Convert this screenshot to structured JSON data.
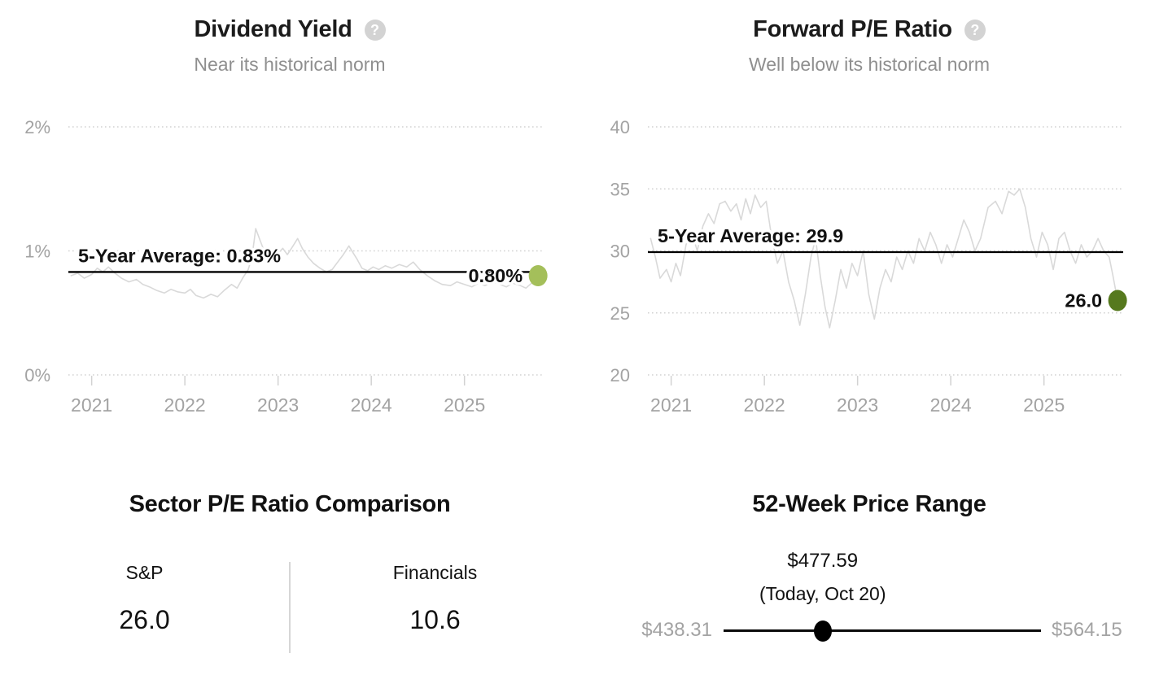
{
  "colors": {
    "background": "#ffffff",
    "title_text": "#1b1b1b",
    "subtitle_text": "#8f8f8f",
    "axis_text": "#a3a3a3",
    "gridline": "#d2d2d2",
    "series_line": "#d9d9d9",
    "average_line": "#000000",
    "dividend_dot": "#a4bf5a",
    "pe_dot": "#56791e",
    "slider": "#000000"
  },
  "charts": [
    {
      "title": "Dividend Yield",
      "help_glyph": "?",
      "subtitle": "Near its historical norm",
      "chart_data": {
        "type": "line",
        "title": "Dividend Yield",
        "xlim": [
          2020.75,
          2025.85
        ],
        "ylim": [
          0,
          2
        ],
        "x_ticks": [
          2021,
          2022,
          2023,
          2024,
          2025
        ],
        "x_tick_labels": [
          "2021",
          "2022",
          "2023",
          "2024",
          "2025"
        ],
        "y_ticks": [
          0,
          1,
          2
        ],
        "y_tick_labels": [
          "0%",
          "1%",
          "2%"
        ],
        "grid": "horizontal-dotted",
        "legend": "none",
        "average": {
          "value": 0.83,
          "label": "5-Year Average: 0.83%"
        },
        "current": {
          "value": 0.8,
          "label": "0.80%",
          "dot_color": "#a4bf5a"
        },
        "series": [
          {
            "name": "Dividend Yield",
            "color": "#d9d9d9",
            "x": [
              2020.78,
              2020.85,
              2020.92,
              2021.0,
              2021.06,
              2021.12,
              2021.18,
              2021.25,
              2021.32,
              2021.4,
              2021.48,
              2021.55,
              2021.62,
              2021.7,
              2021.78,
              2021.85,
              2021.92,
              2022.0,
              2022.06,
              2022.12,
              2022.2,
              2022.28,
              2022.35,
              2022.42,
              2022.5,
              2022.56,
              2022.62,
              2022.68,
              2022.72,
              2022.76,
              2022.8,
              2022.84,
              2022.9,
              2022.95,
              2023.0,
              2023.05,
              2023.1,
              2023.16,
              2023.21,
              2023.26,
              2023.32,
              2023.38,
              2023.45,
              2023.52,
              2023.58,
              2023.65,
              2023.7,
              2023.76,
              2023.8,
              2023.85,
              2023.9,
              2023.96,
              2024.02,
              2024.08,
              2024.15,
              2024.22,
              2024.3,
              2024.38,
              2024.45,
              2024.52,
              2024.6,
              2024.68,
              2024.76,
              2024.85,
              2024.92,
              2025.0,
              2025.08,
              2025.15,
              2025.22,
              2025.3,
              2025.38,
              2025.45,
              2025.52,
              2025.6,
              2025.66,
              2025.72,
              2025.79
            ],
            "y": [
              0.8,
              0.82,
              0.78,
              0.81,
              0.86,
              0.83,
              0.87,
              0.82,
              0.78,
              0.75,
              0.77,
              0.73,
              0.71,
              0.68,
              0.66,
              0.69,
              0.67,
              0.66,
              0.69,
              0.64,
              0.62,
              0.65,
              0.63,
              0.68,
              0.73,
              0.7,
              0.78,
              0.85,
              0.95,
              1.18,
              1.1,
              1.02,
              0.98,
              0.94,
              0.98,
              1.02,
              0.97,
              1.04,
              1.1,
              1.02,
              0.95,
              0.9,
              0.86,
              0.83,
              0.85,
              0.92,
              0.97,
              1.04,
              0.99,
              0.93,
              0.86,
              0.84,
              0.87,
              0.85,
              0.88,
              0.86,
              0.89,
              0.87,
              0.91,
              0.85,
              0.8,
              0.76,
              0.73,
              0.72,
              0.75,
              0.73,
              0.71,
              0.74,
              0.72,
              0.75,
              0.73,
              0.71,
              0.74,
              0.72,
              0.7,
              0.74,
              0.8
            ]
          }
        ]
      }
    },
    {
      "title": "Forward P/E Ratio",
      "help_glyph": "?",
      "subtitle": "Well below its historical norm",
      "chart_data": {
        "type": "line",
        "title": "Forward P/E Ratio",
        "xlim": [
          2020.75,
          2025.85
        ],
        "ylim": [
          20,
          40
        ],
        "x_ticks": [
          2021,
          2022,
          2023,
          2024,
          2025
        ],
        "x_tick_labels": [
          "2021",
          "2022",
          "2023",
          "2024",
          "2025"
        ],
        "y_ticks": [
          20,
          25,
          30,
          35,
          40
        ],
        "y_tick_labels": [
          "20",
          "25",
          "30",
          "35",
          "40"
        ],
        "grid": "horizontal-dotted",
        "legend": "none",
        "average": {
          "value": 29.9,
          "label": "5-Year Average: 29.9"
        },
        "current": {
          "value": 26.0,
          "label": "26.0",
          "dot_color": "#56791e"
        },
        "series": [
          {
            "name": "Forward P/E Ratio",
            "color": "#d9d9d9",
            "x": [
              2020.78,
              2020.83,
              2020.88,
              2020.95,
              2021.0,
              2021.05,
              2021.1,
              2021.16,
              2021.22,
              2021.28,
              2021.34,
              2021.4,
              2021.46,
              2021.52,
              2021.58,
              2021.64,
              2021.7,
              2021.75,
              2021.8,
              2021.85,
              2021.9,
              2021.96,
              2022.02,
              2022.08,
              2022.14,
              2022.2,
              2022.26,
              2022.32,
              2022.38,
              2022.44,
              2022.5,
              2022.55,
              2022.6,
              2022.65,
              2022.7,
              2022.76,
              2022.82,
              2022.88,
              2022.94,
              2023.0,
              2023.06,
              2023.12,
              2023.18,
              2023.24,
              2023.3,
              2023.36,
              2023.42,
              2023.48,
              2023.54,
              2023.6,
              2023.66,
              2023.72,
              2023.78,
              2023.84,
              2023.9,
              2023.96,
              2024.02,
              2024.08,
              2024.14,
              2024.2,
              2024.26,
              2024.32,
              2024.4,
              2024.48,
              2024.55,
              2024.62,
              2024.68,
              2024.74,
              2024.8,
              2024.86,
              2024.92,
              2024.98,
              2025.04,
              2025.1,
              2025.16,
              2025.22,
              2025.28,
              2025.34,
              2025.4,
              2025.46,
              2025.52,
              2025.58,
              2025.64,
              2025.7,
              2025.74,
              2025.79
            ],
            "y": [
              31.0,
              29.5,
              27.8,
              28.5,
              27.5,
              29.0,
              28.0,
              30.5,
              31.5,
              30.0,
              32.0,
              33.0,
              32.2,
              33.8,
              34.0,
              33.2,
              33.8,
              32.5,
              34.2,
              33.0,
              34.5,
              33.5,
              34.0,
              31.0,
              29.0,
              30.0,
              27.5,
              26.0,
              24.0,
              26.5,
              29.5,
              31.0,
              28.0,
              25.5,
              23.8,
              26.0,
              28.5,
              27.0,
              29.0,
              28.0,
              30.0,
              26.5,
              24.5,
              27.0,
              28.5,
              27.5,
              29.5,
              28.5,
              30.0,
              29.0,
              31.0,
              30.0,
              31.5,
              30.5,
              29.0,
              30.5,
              29.5,
              31.0,
              32.5,
              31.5,
              30.0,
              31.0,
              33.5,
              34.0,
              33.0,
              34.8,
              34.5,
              35.0,
              33.5,
              31.0,
              29.5,
              31.5,
              30.5,
              28.5,
              31.0,
              31.5,
              30.0,
              29.0,
              30.5,
              29.5,
              30.0,
              31.0,
              30.0,
              29.5,
              28.0,
              26.0
            ]
          }
        ]
      }
    }
  ],
  "sector_comparison": {
    "title": "Sector P/E Ratio Comparison",
    "items": [
      {
        "label": "S&P",
        "value": "26.0"
      },
      {
        "label": "Financials",
        "value": "10.6"
      }
    ]
  },
  "price_range": {
    "title": "52-Week Price Range",
    "today_price": "$477.59",
    "today_label": "(Today, Oct 20)",
    "low_label": "$438.31",
    "high_label": "$564.15",
    "low_value": 438.31,
    "high_value": 564.15,
    "today_value": 477.59
  }
}
